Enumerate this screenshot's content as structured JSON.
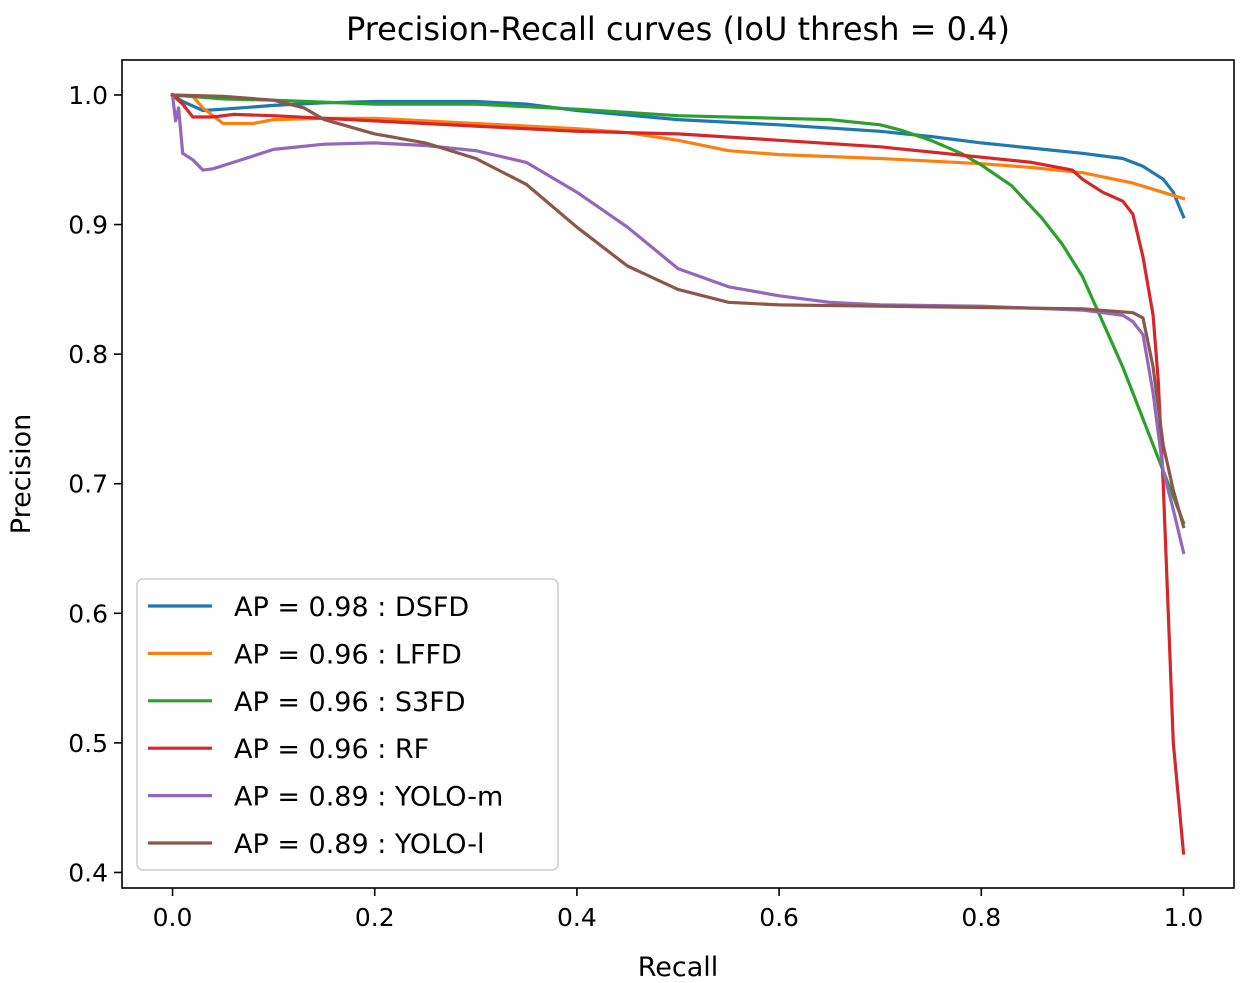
{
  "chart_data": {
    "type": "line",
    "title": "Precision-Recall curves (IoU thresh = 0.4)",
    "xlabel": "Recall",
    "ylabel": "Precision",
    "xlim": [
      -0.05,
      1.05
    ],
    "ylim": [
      0.388,
      1.027
    ],
    "xticks": [
      0.0,
      0.2,
      0.4,
      0.6,
      0.8,
      1.0
    ],
    "xtick_labels": [
      "0.0",
      "0.2",
      "0.4",
      "0.6",
      "0.8",
      "1.0"
    ],
    "yticks": [
      0.4,
      0.5,
      0.6,
      0.7,
      0.8,
      0.9,
      1.0
    ],
    "ytick_labels": [
      "0.4",
      "0.5",
      "0.6",
      "0.7",
      "0.8",
      "0.9",
      "1.0"
    ],
    "grid": false,
    "legend_position": "lower-left",
    "series": [
      {
        "name": "AP = 0.98 : DSFD",
        "color": "#1f77b4",
        "points": [
          [
            0.0,
            1.0
          ],
          [
            0.01,
            0.995
          ],
          [
            0.03,
            0.988
          ],
          [
            0.05,
            0.989
          ],
          [
            0.1,
            0.992
          ],
          [
            0.15,
            0.994
          ],
          [
            0.2,
            0.995
          ],
          [
            0.3,
            0.995
          ],
          [
            0.35,
            0.993
          ],
          [
            0.4,
            0.988
          ],
          [
            0.5,
            0.981
          ],
          [
            0.6,
            0.977
          ],
          [
            0.7,
            0.972
          ],
          [
            0.75,
            0.968
          ],
          [
            0.8,
            0.963
          ],
          [
            0.85,
            0.959
          ],
          [
            0.9,
            0.955
          ],
          [
            0.94,
            0.951
          ],
          [
            0.96,
            0.945
          ],
          [
            0.98,
            0.935
          ],
          [
            0.99,
            0.925
          ],
          [
            1.0,
            0.906
          ]
        ]
      },
      {
        "name": "AP = 0.96 : LFFD",
        "color": "#ff7f0e",
        "points": [
          [
            0.0,
            1.0
          ],
          [
            0.02,
            0.999
          ],
          [
            0.03,
            0.99
          ],
          [
            0.05,
            0.978
          ],
          [
            0.08,
            0.978
          ],
          [
            0.1,
            0.981
          ],
          [
            0.15,
            0.982
          ],
          [
            0.2,
            0.982
          ],
          [
            0.3,
            0.978
          ],
          [
            0.4,
            0.974
          ],
          [
            0.45,
            0.971
          ],
          [
            0.5,
            0.965
          ],
          [
            0.55,
            0.957
          ],
          [
            0.6,
            0.954
          ],
          [
            0.7,
            0.951
          ],
          [
            0.8,
            0.947
          ],
          [
            0.85,
            0.944
          ],
          [
            0.9,
            0.94
          ],
          [
            0.95,
            0.932
          ],
          [
            1.0,
            0.92
          ]
        ]
      },
      {
        "name": "AP = 0.96 : S3FD",
        "color": "#2ca02c",
        "points": [
          [
            0.0,
            1.0
          ],
          [
            0.05,
            0.997
          ],
          [
            0.1,
            0.996
          ],
          [
            0.2,
            0.993
          ],
          [
            0.3,
            0.993
          ],
          [
            0.4,
            0.989
          ],
          [
            0.5,
            0.984
          ],
          [
            0.6,
            0.982
          ],
          [
            0.65,
            0.981
          ],
          [
            0.7,
            0.977
          ],
          [
            0.72,
            0.973
          ],
          [
            0.75,
            0.965
          ],
          [
            0.78,
            0.955
          ],
          [
            0.8,
            0.946
          ],
          [
            0.83,
            0.93
          ],
          [
            0.86,
            0.905
          ],
          [
            0.88,
            0.885
          ],
          [
            0.9,
            0.86
          ],
          [
            0.92,
            0.825
          ],
          [
            0.94,
            0.79
          ],
          [
            0.96,
            0.75
          ],
          [
            0.98,
            0.71
          ],
          [
            1.0,
            0.67
          ]
        ]
      },
      {
        "name": "AP = 0.96 : RF",
        "color": "#d62728",
        "points": [
          [
            0.0,
            1.0
          ],
          [
            0.01,
            0.993
          ],
          [
            0.02,
            0.983
          ],
          [
            0.04,
            0.983
          ],
          [
            0.06,
            0.985
          ],
          [
            0.1,
            0.984
          ],
          [
            0.15,
            0.982
          ],
          [
            0.2,
            0.98
          ],
          [
            0.3,
            0.976
          ],
          [
            0.4,
            0.972
          ],
          [
            0.5,
            0.97
          ],
          [
            0.6,
            0.965
          ],
          [
            0.7,
            0.96
          ],
          [
            0.8,
            0.952
          ],
          [
            0.85,
            0.948
          ],
          [
            0.89,
            0.942
          ],
          [
            0.9,
            0.935
          ],
          [
            0.92,
            0.925
          ],
          [
            0.94,
            0.918
          ],
          [
            0.95,
            0.908
          ],
          [
            0.96,
            0.875
          ],
          [
            0.97,
            0.83
          ],
          [
            0.975,
            0.78
          ],
          [
            0.98,
            0.7
          ],
          [
            0.985,
            0.6
          ],
          [
            0.99,
            0.5
          ],
          [
            1.0,
            0.415
          ]
        ]
      },
      {
        "name": "AP = 0.89 : YOLO-m",
        "color": "#9467bd",
        "points": [
          [
            0.0,
            1.0
          ],
          [
            0.003,
            0.98
          ],
          [
            0.006,
            0.99
          ],
          [
            0.01,
            0.955
          ],
          [
            0.02,
            0.95
          ],
          [
            0.03,
            0.942
          ],
          [
            0.04,
            0.943
          ],
          [
            0.06,
            0.948
          ],
          [
            0.1,
            0.958
          ],
          [
            0.15,
            0.962
          ],
          [
            0.2,
            0.963
          ],
          [
            0.25,
            0.961
          ],
          [
            0.3,
            0.957
          ],
          [
            0.35,
            0.948
          ],
          [
            0.4,
            0.925
          ],
          [
            0.45,
            0.898
          ],
          [
            0.5,
            0.866
          ],
          [
            0.55,
            0.852
          ],
          [
            0.6,
            0.845
          ],
          [
            0.65,
            0.84
          ],
          [
            0.7,
            0.838
          ],
          [
            0.8,
            0.837
          ],
          [
            0.9,
            0.834
          ],
          [
            0.94,
            0.83
          ],
          [
            0.95,
            0.825
          ],
          [
            0.96,
            0.815
          ],
          [
            0.97,
            0.77
          ],
          [
            0.98,
            0.71
          ],
          [
            0.99,
            0.68
          ],
          [
            1.0,
            0.647
          ]
        ]
      },
      {
        "name": "AP = 0.89 : YOLO-l",
        "color": "#8c564b",
        "points": [
          [
            0.0,
            1.0
          ],
          [
            0.05,
            0.999
          ],
          [
            0.1,
            0.996
          ],
          [
            0.13,
            0.99
          ],
          [
            0.15,
            0.981
          ],
          [
            0.2,
            0.97
          ],
          [
            0.25,
            0.963
          ],
          [
            0.3,
            0.951
          ],
          [
            0.35,
            0.931
          ],
          [
            0.4,
            0.898
          ],
          [
            0.45,
            0.868
          ],
          [
            0.5,
            0.85
          ],
          [
            0.55,
            0.84
          ],
          [
            0.6,
            0.838
          ],
          [
            0.7,
            0.837
          ],
          [
            0.8,
            0.836
          ],
          [
            0.9,
            0.835
          ],
          [
            0.95,
            0.832
          ],
          [
            0.96,
            0.828
          ],
          [
            0.97,
            0.79
          ],
          [
            0.98,
            0.73
          ],
          [
            0.99,
            0.695
          ],
          [
            1.0,
            0.667
          ]
        ]
      }
    ]
  }
}
